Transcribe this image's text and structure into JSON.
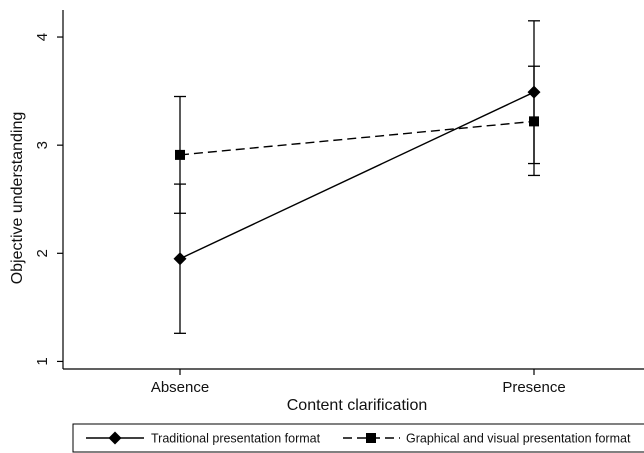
{
  "chart_data": {
    "type": "line",
    "title": "",
    "xlabel": "Content clarification",
    "ylabel": "Objective understanding",
    "categories": [
      "Absence",
      "Presence"
    ],
    "yticks": [
      "1",
      "2",
      "3",
      "4"
    ],
    "ylim": [
      0.93,
      4.25
    ],
    "grid": false,
    "legend_position": "bottom",
    "series": [
      {
        "name": "Traditional presentation format",
        "marker": "diamond",
        "line_style": "solid",
        "values": [
          1.95,
          3.49
        ],
        "ci_low": [
          1.26,
          2.83
        ],
        "ci_high": [
          2.64,
          4.15
        ]
      },
      {
        "name": "Graphical and visual presentation format",
        "marker": "square",
        "line_style": "dashed",
        "values": [
          2.91,
          3.22
        ],
        "ci_low": [
          2.37,
          2.72
        ],
        "ci_high": [
          3.45,
          3.73
        ]
      }
    ],
    "colors": {
      "line": "#000000",
      "axis": "#000000",
      "text": "#111111",
      "background": "#ffffff"
    }
  }
}
